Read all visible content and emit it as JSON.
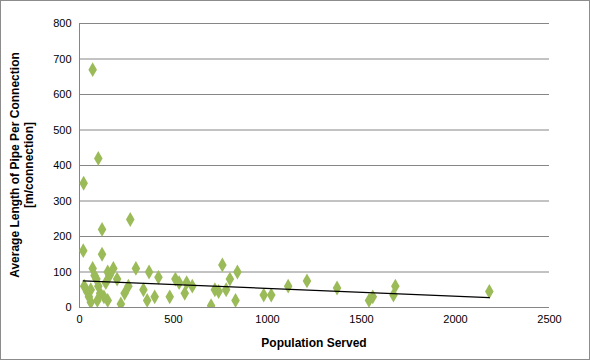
{
  "chart_data": {
    "type": "scatter",
    "x_label": "Population Served",
    "y_label": "Average Length of Pipe Per Connection [m/connection]",
    "xlim": [
      0,
      2500
    ],
    "xticks": [
      0,
      500,
      1000,
      1500,
      2000,
      2500
    ],
    "ylim": [
      0,
      800
    ],
    "yticks": [
      0,
      100,
      200,
      300,
      400,
      500,
      600,
      700,
      800
    ],
    "grid": true,
    "series": [
      {
        "type": "scatter",
        "color": "#9bbb59",
        "marker": "diamond",
        "x": [
          22,
          70,
          100,
          20,
          120,
          270,
          120,
          25,
          40,
          50,
          60,
          70,
          80,
          90,
          100,
          110,
          130,
          140,
          150,
          160,
          180,
          200,
          220,
          240,
          260,
          300,
          340,
          360,
          370,
          400,
          420,
          480,
          510,
          530,
          560,
          570,
          600,
          700,
          720,
          740,
          760,
          780,
          800,
          830,
          840,
          980,
          1020,
          1110,
          1210,
          1370,
          1540,
          1560,
          1670,
          1680,
          2180,
          150,
          60,
          95
        ],
        "values": [
          350,
          670,
          420,
          160,
          220,
          248,
          150,
          60,
          45,
          30,
          50,
          110,
          90,
          80,
          60,
          40,
          30,
          70,
          100,
          90,
          110,
          80,
          10,
          40,
          60,
          110,
          50,
          20,
          100,
          30,
          85,
          30,
          80,
          70,
          40,
          70,
          60,
          5,
          50,
          45,
          120,
          50,
          80,
          20,
          100,
          35,
          35,
          60,
          75,
          55,
          20,
          30,
          35,
          60,
          45,
          20,
          15,
          20
        ]
      },
      {
        "type": "line",
        "color": "#000000",
        "line_style": "solid",
        "x": [
          20,
          2180
        ],
        "values": [
          75,
          28
        ]
      }
    ]
  }
}
